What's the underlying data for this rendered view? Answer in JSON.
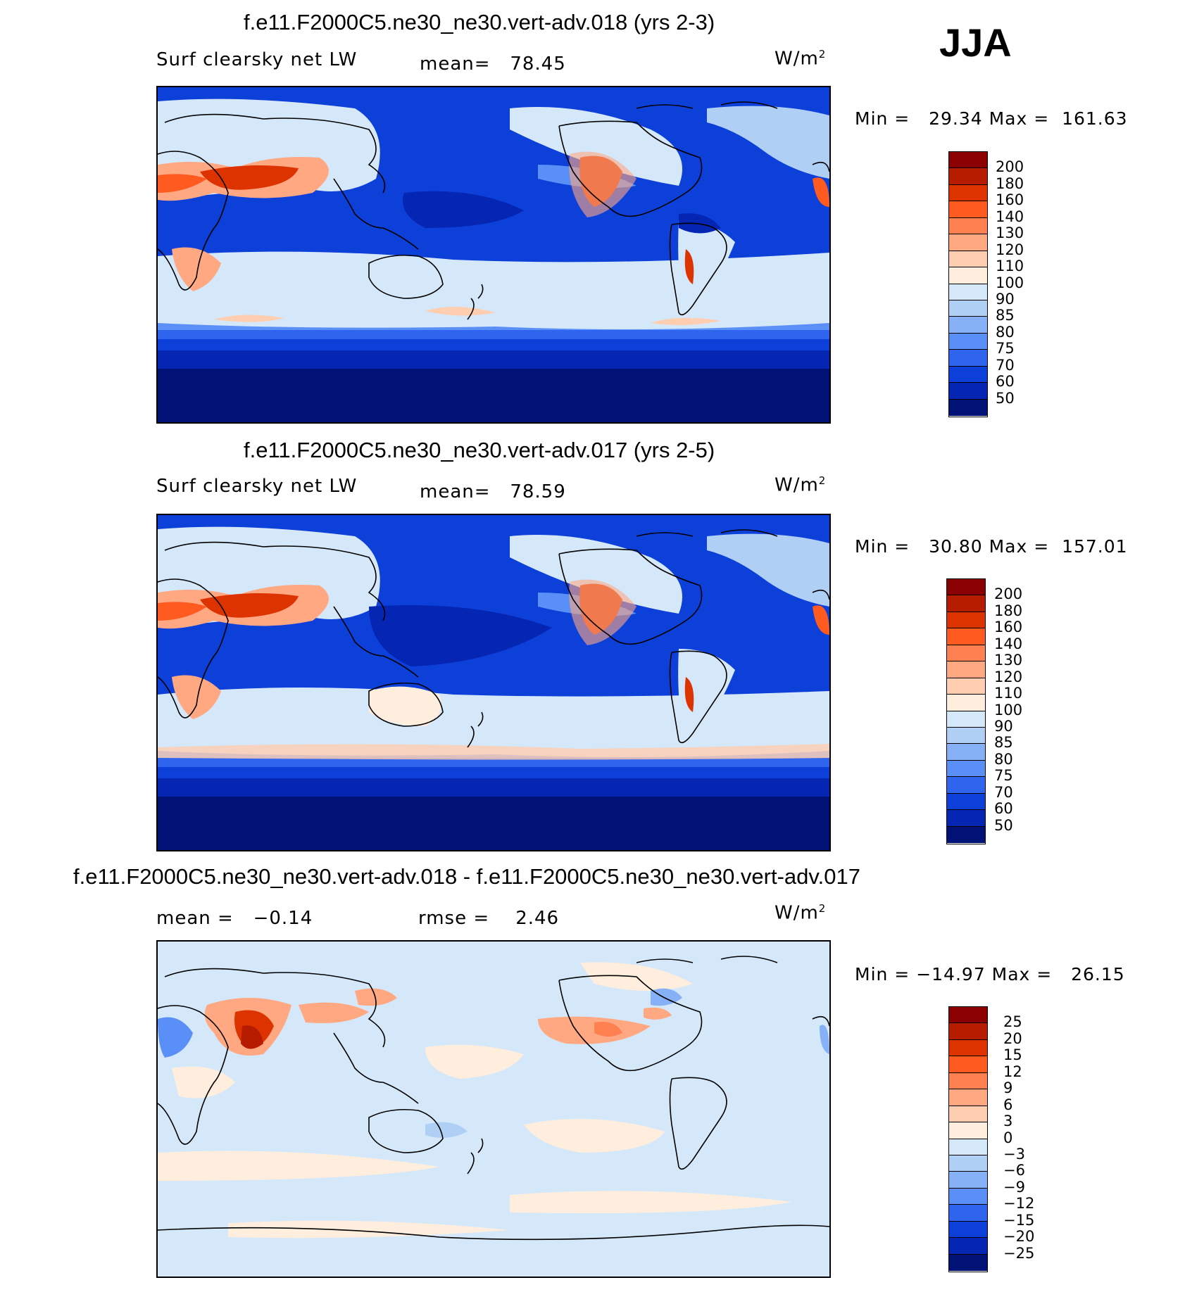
{
  "season": "JJA",
  "panels": [
    {
      "title": "f.e11.F2000C5.ne30_ne30.vert-adv.018 (yrs 2-3)",
      "left_label": "Surf clearsky net LW",
      "center_label": "mean=   78.45",
      "units": "W/m",
      "units_sup": "2",
      "minmax": "Min =   29.34 Max =  161.63",
      "colorbar": {
        "labels": [
          "200",
          "180",
          "160",
          "140",
          "130",
          "120",
          "110",
          "100",
          "90",
          "85",
          "80",
          "75",
          "70",
          "60",
          "50"
        ],
        "colors": [
          "#8b0000",
          "#b51c00",
          "#dd3300",
          "#ff5a1f",
          "#ff8050",
          "#ffa882",
          "#ffcdb0",
          "#ffeedd",
          "#d5e8fa",
          "#b0cff5",
          "#86b1f7",
          "#5a8ff7",
          "#2f64ef",
          "#0d3fd9",
          "#0525b3",
          "#011277"
        ]
      }
    },
    {
      "title": "f.e11.F2000C5.ne30_ne30.vert-adv.017 (yrs 2-5)",
      "left_label": "Surf clearsky net LW",
      "center_label": "mean=   78.59",
      "units": "W/m",
      "units_sup": "2",
      "minmax": "Min =   30.80 Max =  157.01",
      "colorbar": {
        "labels": [
          "200",
          "180",
          "160",
          "140",
          "130",
          "120",
          "110",
          "100",
          "90",
          "85",
          "80",
          "75",
          "70",
          "60",
          "50"
        ],
        "colors": [
          "#8b0000",
          "#b51c00",
          "#dd3300",
          "#ff5a1f",
          "#ff8050",
          "#ffa882",
          "#ffcdb0",
          "#ffeedd",
          "#d5e8fa",
          "#b0cff5",
          "#86b1f7",
          "#5a8ff7",
          "#2f64ef",
          "#0d3fd9",
          "#0525b3",
          "#011277"
        ]
      }
    },
    {
      "title": "f.e11.F2000C5.ne30_ne30.vert-adv.018 - f.e11.F2000C5.ne30_ne30.vert-adv.017",
      "left_label": "mean =   −0.14",
      "center_label": "rmse =    2.46",
      "units": "W/m",
      "units_sup": "2",
      "minmax": "Min = −14.97 Max =   26.15",
      "colorbar": {
        "labels": [
          "25",
          "20",
          "15",
          "12",
          "9",
          "6",
          "3",
          "0",
          "−3",
          "−6",
          "−9",
          "−12",
          "−15",
          "−20",
          "−25"
        ],
        "colors": [
          "#8b0000",
          "#b51c00",
          "#dd3300",
          "#ff5a1f",
          "#ff8050",
          "#ffa882",
          "#ffcdb0",
          "#ffeedd",
          "#d5e8fa",
          "#b0cff5",
          "#86b1f7",
          "#5a8ff7",
          "#2f64ef",
          "#0d3fd9",
          "#0525b3",
          "#011277"
        ]
      }
    }
  ]
}
